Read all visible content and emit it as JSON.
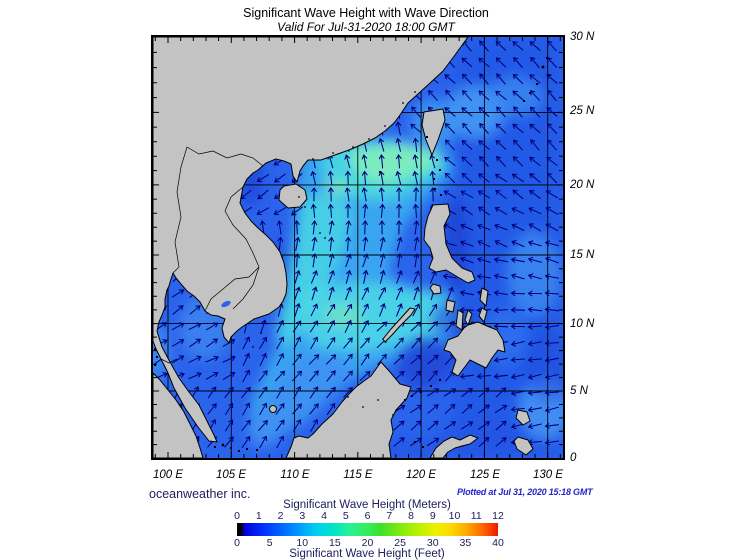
{
  "header": {
    "title": "Significant Wave Height with Wave Direction",
    "subtitle": "Valid For Jul-31-2020 18:00 GMT"
  },
  "axes": {
    "lon_labels": [
      "100 E",
      "105 E",
      "110 E",
      "115 E",
      "120 E",
      "125 E",
      "130 E"
    ],
    "lat_labels": [
      "30 N",
      "25 N",
      "20 N",
      "15 N",
      "10 N",
      "5 N",
      "0"
    ]
  },
  "legend": {
    "meters_title": "Significant Wave Height (Meters)",
    "meters_ticks": [
      "0",
      "1",
      "2",
      "3",
      "4",
      "5",
      "6",
      "7",
      "8",
      "9",
      "10",
      "11",
      "12"
    ],
    "feet_title": "Significant Wave Height (Feet)",
    "feet_ticks": [
      "0",
      "5",
      "10",
      "15",
      "20",
      "25",
      "30",
      "35",
      "40"
    ],
    "gradient_stops": [
      [
        "#000000",
        0
      ],
      [
        "#000000",
        1.5
      ],
      [
        "#0000dc",
        3
      ],
      [
        "#0030ff",
        10
      ],
      [
        "#0064ff",
        17
      ],
      [
        "#009cff",
        24
      ],
      [
        "#00ccf0",
        30
      ],
      [
        "#00e4c8",
        37
      ],
      [
        "#28f096",
        43
      ],
      [
        "#34ee58",
        50
      ],
      [
        "#3ce02c",
        55
      ],
      [
        "#7cea10",
        62
      ],
      [
        "#b8f000",
        69
      ],
      [
        "#ecf000",
        76
      ],
      [
        "#ffd800",
        82
      ],
      [
        "#ffa800",
        88
      ],
      [
        "#ff6800",
        94
      ],
      [
        "#f02800",
        99
      ],
      [
        "#e81800",
        100
      ]
    ]
  },
  "footer": {
    "credit": "oceanweather inc.",
    "plotted": "Plotted at Jul 31, 2020 15:18 GMT"
  },
  "colors": {
    "land": "#c3c3c3",
    "ocean_base": "#2a63ec",
    "arrow": "#000078",
    "grid": "#000000",
    "navy_text": "#20205e",
    "plotted_text": "#2424c8"
  }
}
